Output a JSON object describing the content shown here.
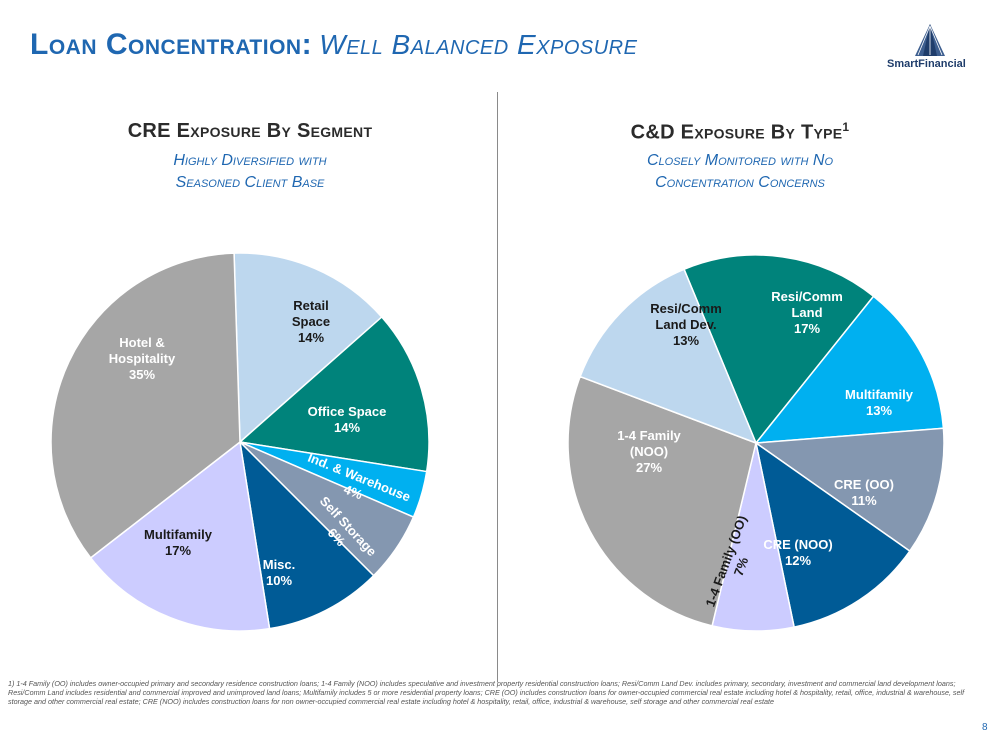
{
  "page": {
    "title_main": "Loan Concentration:",
    "title_italic": "Well Balanced Exposure",
    "logo_text": "SmartFinancial",
    "footnote": "1)  1-4 Family (OO) includes owner-occupied primary and secondary residence construction loans; 1-4 Family (NOO) includes speculative and investment property residential construction loans; Resi/Comm Land Dev. includes primary, secondary, investment and commercial land development loans; Resi/Comm Land includes residential and commercial improved and unimproved  land loans; Multifamily includes 5 or more residential property loans; CRE (OO) includes construction loans for owner-occupied commercial real estate including hotel & hospitality, retail, office, industrial & warehouse, self storage and other commercial real estate; CRE (NOO) includes construction loans for non owner-occupied commercial real estate including hotel & hospitality, retail, office, industrial & warehouse, self storage and other commercial real estate",
    "page_number": "8"
  },
  "chart_data": [
    {
      "type": "pie",
      "title": "CRE Exposure By Segment",
      "subtitle_line1": "Highly Diversified with",
      "subtitle_line2": "Seasoned Client Base",
      "slices": [
        {
          "label": [
            "Retail",
            "Space"
          ],
          "pct": "14%",
          "value": 14,
          "color": "#bdd7ee",
          "text_color": "#1a1a1a"
        },
        {
          "label": [
            "Office Space"
          ],
          "pct": "14%",
          "value": 14,
          "color": "#00837b",
          "text_color": "#ffffff"
        },
        {
          "label": [
            "Ind. & Warehouse"
          ],
          "pct": "4%",
          "value": 4,
          "color": "#00b0f0",
          "text_color": "#ffffff"
        },
        {
          "label": [
            "Self Storage"
          ],
          "pct": "6%",
          "value": 6,
          "color": "#8497b0",
          "text_color": "#ffffff"
        },
        {
          "label": [
            "Misc."
          ],
          "pct": "10%",
          "value": 10,
          "color": "#005b96",
          "text_color": "#ffffff"
        },
        {
          "label": [
            "Multifamily"
          ],
          "pct": "17%",
          "value": 17,
          "color": "#ccccff",
          "text_color": "#1a1a1a"
        },
        {
          "label": [
            "Hotel &",
            "Hospitality"
          ],
          "pct": "35%",
          "value": 35,
          "color": "#a6a6a6",
          "text_color": "#ffffff"
        }
      ]
    },
    {
      "type": "pie",
      "title": "C&D Exposure By Type",
      "title_sup": "1",
      "subtitle_line1": "Closely Monitored with No",
      "subtitle_line2": "Concentration Concerns",
      "slices": [
        {
          "label": [
            "Resi/Comm",
            "Land"
          ],
          "pct": "17%",
          "value": 17,
          "color": "#00837b",
          "text_color": "#ffffff"
        },
        {
          "label": [
            "Multifamily"
          ],
          "pct": "13%",
          "value": 13,
          "color": "#00b0f0",
          "text_color": "#ffffff"
        },
        {
          "label": [
            "CRE (OO)"
          ],
          "pct": "11%",
          "value": 11,
          "color": "#8497b0",
          "text_color": "#ffffff"
        },
        {
          "label": [
            "CRE (NOO)"
          ],
          "pct": "12%",
          "value": 12,
          "color": "#005b96",
          "text_color": "#ffffff"
        },
        {
          "label": [
            "1-4 Family (OO)"
          ],
          "pct": "7%",
          "value": 7,
          "color": "#ccccff",
          "text_color": "#1a1a1a"
        },
        {
          "label": [
            "1-4 Family",
            "(NOO)"
          ],
          "pct": "27%",
          "value": 27,
          "color": "#a6a6a6",
          "text_color": "#ffffff"
        },
        {
          "label": [
            "Resi/Comm",
            "Land Dev."
          ],
          "pct": "13%",
          "value": 13,
          "color": "#bdd7ee",
          "text_color": "#1a1a1a"
        }
      ]
    }
  ]
}
